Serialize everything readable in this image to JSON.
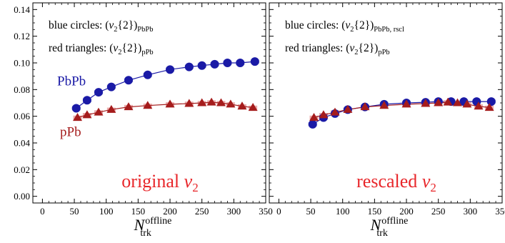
{
  "colors": {
    "blue": "#1a1aa6",
    "red": "#a51c1c",
    "band_blue": "#9aa8d8",
    "band_red": "#e8a0a0",
    "title_red": "#e8262a",
    "pbpb_label": "#1a1aa6",
    "ppb_label": "#a51c1c"
  },
  "chart_data": [
    {
      "type": "scatter",
      "title": "original v2",
      "title_text": "original ",
      "title_symbol": "v",
      "title_subscript": "2",
      "xlabel_main": "N",
      "xlabel_sup": "offline",
      "xlabel_sub": "trk",
      "xlim": [
        -15,
        350
      ],
      "ylim": [
        -0.005,
        0.145
      ],
      "x_ticks": [
        "0",
        "50",
        "100",
        "150",
        "200",
        "250",
        "300",
        "350"
      ],
      "x_tick_values": [
        0,
        50,
        100,
        150,
        200,
        250,
        300,
        350
      ],
      "y_ticks": [
        "0.00",
        "0.02",
        "0.04",
        "0.06",
        "0.08",
        "0.10",
        "0.12",
        "0.14"
      ],
      "y_tick_values": [
        0.0,
        0.02,
        0.04,
        0.06,
        0.08,
        0.1,
        0.12,
        0.14
      ],
      "legend": [
        {
          "prefix": "blue circles: (",
          "symbol": "v",
          "sub": "2",
          "mid": "{2})",
          "subscript2": "PbPb"
        },
        {
          "prefix": "red triangles: (",
          "symbol": "v",
          "sub": "2",
          "mid": "{2})",
          "subscript2": "pPb"
        }
      ],
      "labels": {
        "pbpb": "PbPb",
        "ppb": "pPb"
      },
      "series": [
        {
          "name": "PbPb",
          "marker": "circle",
          "color": "blue",
          "x": [
            53,
            70,
            88,
            108,
            135,
            165,
            200,
            230,
            250,
            270,
            290,
            310,
            333
          ],
          "y": [
            0.066,
            0.072,
            0.078,
            0.082,
            0.087,
            0.091,
            0.095,
            0.097,
            0.098,
            0.099,
            0.1,
            0.1,
            0.101
          ]
        },
        {
          "name": "pPb",
          "marker": "triangle",
          "color": "red",
          "x": [
            55,
            70,
            88,
            108,
            135,
            165,
            200,
            230,
            250,
            265,
            280,
            295,
            313,
            330
          ],
          "y": [
            0.059,
            0.061,
            0.063,
            0.065,
            0.067,
            0.068,
            0.069,
            0.0695,
            0.07,
            0.0705,
            0.07,
            0.069,
            0.0675,
            0.0665
          ]
        }
      ]
    },
    {
      "type": "scatter",
      "title": "rescaled v2",
      "title_text": "rescaled ",
      "title_symbol": "v",
      "title_subscript": "2",
      "xlabel_main": "N",
      "xlabel_sup": "offline",
      "xlabel_sub": "trk",
      "xlim": [
        -15,
        350
      ],
      "ylim": [
        -0.005,
        0.145
      ],
      "x_ticks": [
        "0",
        "50",
        "100",
        "150",
        "200",
        "250",
        "300",
        "350"
      ],
      "x_tick_values": [
        0,
        50,
        100,
        150,
        200,
        250,
        300,
        350
      ],
      "legend": [
        {
          "prefix": "blue circles: (",
          "symbol": "v",
          "sub": "2",
          "mid": "{2})",
          "subscript2": "PbPb, rscl"
        },
        {
          "prefix": "red triangles: (",
          "symbol": "v",
          "sub": "2",
          "mid": "{2})",
          "subscript2": "pPb"
        }
      ],
      "series": [
        {
          "name": "PbPb, rscl",
          "marker": "circle",
          "color": "blue",
          "x": [
            53,
            70,
            88,
            108,
            135,
            165,
            200,
            230,
            250,
            270,
            290,
            310,
            333
          ],
          "y": [
            0.054,
            0.059,
            0.062,
            0.065,
            0.067,
            0.069,
            0.07,
            0.0705,
            0.071,
            0.071,
            0.071,
            0.071,
            0.071
          ]
        },
        {
          "name": "pPb",
          "marker": "triangle",
          "color": "red",
          "x": [
            55,
            70,
            88,
            108,
            135,
            165,
            200,
            230,
            250,
            265,
            280,
            295,
            313,
            330
          ],
          "y": [
            0.059,
            0.061,
            0.063,
            0.065,
            0.067,
            0.068,
            0.069,
            0.0695,
            0.07,
            0.0705,
            0.07,
            0.069,
            0.0675,
            0.0665
          ]
        }
      ]
    }
  ]
}
